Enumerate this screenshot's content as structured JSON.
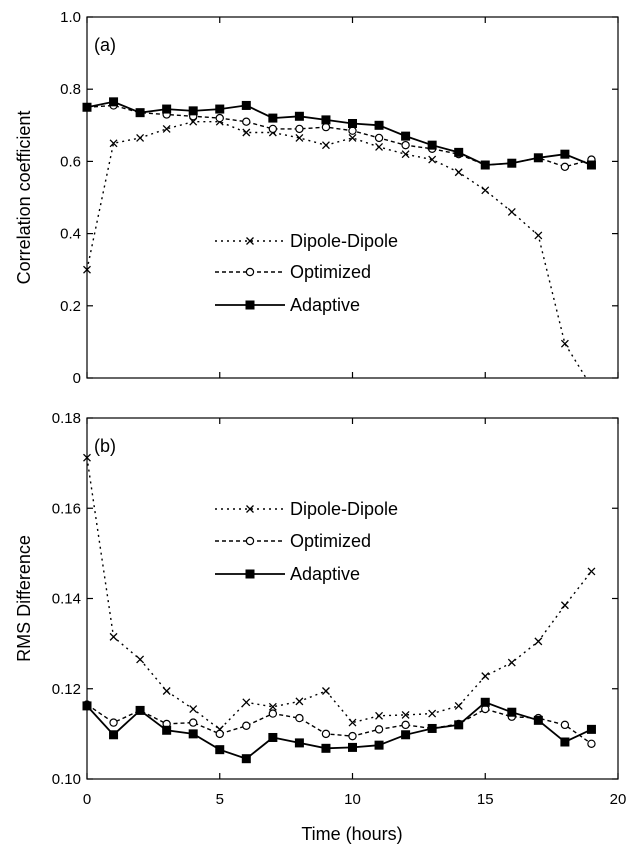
{
  "figure": {
    "x_axis_label": "Time (hours)",
    "x_ticks": [
      0,
      5,
      10,
      15,
      20
    ]
  },
  "chart_data": [
    {
      "type": "line",
      "panel_label": "(a)",
      "ylabel": "Correlation coefficient",
      "xlim": [
        0,
        20
      ],
      "ylim": [
        0,
        1.0
      ],
      "x_ticks": [
        0,
        5,
        10,
        15,
        20
      ],
      "y_ticks": [
        "0",
        "0.2",
        "0.4",
        "0.6",
        "0.8",
        "1.0"
      ],
      "legend_position": "center",
      "series": [
        {
          "name": "Dipole-Dipole",
          "style": "dotted",
          "marker": "x",
          "x": [
            0,
            1,
            2,
            3,
            4,
            5,
            6,
            7,
            8,
            9,
            10,
            11,
            12,
            13,
            14,
            15,
            16,
            17,
            18,
            18.8
          ],
          "values": [
            0.3,
            0.65,
            0.665,
            0.69,
            0.71,
            0.71,
            0.68,
            0.68,
            0.665,
            0.645,
            0.665,
            0.64,
            0.62,
            0.605,
            0.57,
            0.52,
            0.46,
            0.395,
            0.095,
            0
          ]
        },
        {
          "name": "Optimized",
          "style": "dashed",
          "marker": "circle",
          "x": [
            0,
            1,
            2,
            3,
            4,
            5,
            6,
            7,
            8,
            9,
            10,
            11,
            12,
            13,
            14,
            15,
            16,
            17,
            18,
            19
          ],
          "values": [
            0.75,
            0.755,
            0.735,
            0.73,
            0.725,
            0.72,
            0.71,
            0.69,
            0.69,
            0.695,
            0.685,
            0.665,
            0.645,
            0.635,
            0.62,
            0.59,
            0.595,
            0.61,
            0.585,
            0.605
          ]
        },
        {
          "name": "Adaptive",
          "style": "solid",
          "marker": "square",
          "x": [
            0,
            1,
            2,
            3,
            4,
            5,
            6,
            7,
            8,
            9,
            10,
            11,
            12,
            13,
            14,
            15,
            16,
            17,
            18,
            19
          ],
          "values": [
            0.75,
            0.765,
            0.735,
            0.745,
            0.74,
            0.745,
            0.755,
            0.72,
            0.725,
            0.715,
            0.705,
            0.7,
            0.67,
            0.645,
            0.625,
            0.59,
            0.595,
            0.61,
            0.62,
            0.59
          ]
        }
      ]
    },
    {
      "type": "line",
      "panel_label": "(b)",
      "ylabel": "RMS Difference",
      "xlabel": "Time (hours)",
      "xlim": [
        0,
        20
      ],
      "ylim": [
        0.1,
        0.18
      ],
      "x_ticks": [
        0,
        5,
        10,
        15,
        20
      ],
      "y_ticks": [
        "0.10",
        "0.12",
        "0.14",
        "0.16",
        "0.18"
      ],
      "legend_position": "top-center",
      "series": [
        {
          "name": "Dipole-Dipole",
          "style": "dotted",
          "marker": "x",
          "x": [
            0,
            1,
            2,
            3,
            4,
            5,
            6,
            7,
            8,
            9,
            10,
            11,
            12,
            13,
            14,
            15,
            16,
            17,
            18,
            19
          ],
          "values": [
            0.1712,
            0.1315,
            0.1265,
            0.1195,
            0.1155,
            0.111,
            0.117,
            0.116,
            0.1172,
            0.1195,
            0.1125,
            0.114,
            0.1142,
            0.1145,
            0.1162,
            0.1228,
            0.1258,
            0.1305,
            0.1385,
            0.146
          ]
        },
        {
          "name": "Optimized",
          "style": "dashed",
          "marker": "circle",
          "x": [
            0,
            1,
            2,
            3,
            4,
            5,
            6,
            7,
            8,
            9,
            10,
            11,
            12,
            13,
            14,
            15,
            16,
            17,
            18,
            19
          ],
          "values": [
            0.1165,
            0.1125,
            0.1152,
            0.1122,
            0.1125,
            0.11,
            0.1118,
            0.1145,
            0.1135,
            0.11,
            0.1095,
            0.111,
            0.112,
            0.1112,
            0.1122,
            0.1155,
            0.1138,
            0.1135,
            0.112,
            0.1078
          ]
        },
        {
          "name": "Adaptive",
          "style": "solid",
          "marker": "square",
          "x": [
            0,
            1,
            2,
            3,
            4,
            5,
            6,
            7,
            8,
            9,
            10,
            11,
            12,
            13,
            14,
            15,
            16,
            17,
            18,
            19
          ],
          "values": [
            0.1162,
            0.1098,
            0.1152,
            0.1108,
            0.11,
            0.1065,
            0.1045,
            0.1092,
            0.108,
            0.1068,
            0.107,
            0.1075,
            0.1098,
            0.1112,
            0.112,
            0.117,
            0.1148,
            0.113,
            0.1082,
            0.111
          ]
        }
      ]
    }
  ]
}
